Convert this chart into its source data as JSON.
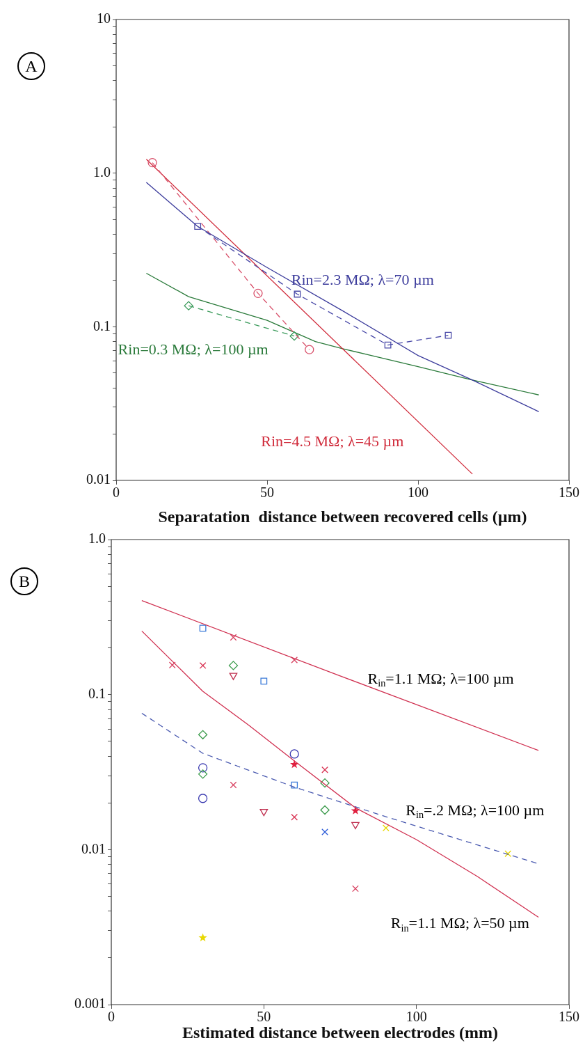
{
  "chart_data": [
    {
      "type": "line",
      "xlabel": "Separatation  distance between recovered cells (µm)",
      "annotations": [
        "A"
      ],
      "log": "y",
      "grid": false,
      "xlim": [
        0,
        150
      ],
      "xticks": [
        0,
        50,
        100,
        150
      ],
      "ylim": [
        0.01,
        10
      ],
      "yticks": [
        {
          "value": 0.01,
          "label": "0.01"
        },
        {
          "value": 0.02,
          "label": null
        },
        {
          "value": 0.03,
          "label": null
        },
        {
          "value": 0.04,
          "label": null
        },
        {
          "value": 0.05,
          "label": null
        },
        {
          "value": 0.06,
          "label": null
        },
        {
          "value": 0.07,
          "label": null
        },
        {
          "value": 0.08,
          "label": null
        },
        {
          "value": 0.09,
          "label": null
        },
        {
          "value": 0.1,
          "label": "0.1"
        },
        {
          "value": 0.2,
          "label": null
        },
        {
          "value": 0.3,
          "label": null
        },
        {
          "value": 0.4,
          "label": null
        },
        {
          "value": 0.5,
          "label": null
        },
        {
          "value": 0.6,
          "label": null
        },
        {
          "value": 0.7,
          "label": null
        },
        {
          "value": 0.8,
          "label": null
        },
        {
          "value": 0.9,
          "label": null
        },
        {
          "value": 1,
          "label": "1.0"
        },
        {
          "value": 2,
          "label": null
        },
        {
          "value": 3,
          "label": null
        },
        {
          "value": 4,
          "label": null
        },
        {
          "value": 5,
          "label": null
        },
        {
          "value": 6,
          "label": null
        },
        {
          "value": 7,
          "label": null
        },
        {
          "value": 8,
          "label": null
        },
        {
          "value": 9,
          "label": null
        },
        {
          "value": 10,
          "label": "10"
        }
      ],
      "series": [
        {
          "color": "#4a4aa8",
          "marker": "square",
          "line_style": "dashed",
          "x": [
            27,
            60,
            90,
            110
          ],
          "values": [
            0.45,
            0.163,
            0.076,
            0.088
          ]
        },
        {
          "name": "Rin=2.3 MΩ; λ=70 µm",
          "color": "#3c3c9c",
          "marker": "none",
          "line_style": "solid",
          "x": [
            10,
            27,
            50,
            75,
            100,
            118,
            140
          ],
          "values": [
            0.87,
            0.45,
            0.243,
            0.127,
            0.065,
            0.045,
            0.028
          ]
        },
        {
          "color": "#d8506a",
          "marker": "circle",
          "line_style": "dashed",
          "x": [
            12,
            47,
            64
          ],
          "values": [
            1.17,
            0.165,
            0.071
          ]
        },
        {
          "name": "Rin=4.5 MΩ; λ=45 µm",
          "color": "#d02a3a",
          "marker": "none",
          "line_style": "solid",
          "x": [
            10,
            118
          ],
          "values": [
            1.23,
            0.011
          ]
        },
        {
          "color": "#3a9a5a",
          "marker": "diamond",
          "line_style": "dashed",
          "x": [
            24,
            59
          ],
          "values": [
            0.137,
            0.087
          ]
        },
        {
          "name": "Rin=0.3 MΩ; λ=100 µm",
          "color": "#2a7a3a",
          "marker": "none",
          "line_style": "solid",
          "x": [
            10,
            24,
            50,
            66,
            75,
            100,
            118,
            140
          ],
          "values": [
            0.223,
            0.157,
            0.11,
            0.08,
            0.072,
            0.055,
            0.045,
            0.036
          ]
        }
      ]
    },
    {
      "type": "scatter",
      "xlabel": "Estimated distance between electrodes (mm)",
      "annotations": [
        "B"
      ],
      "log": "y",
      "grid": false,
      "xlim": [
        0,
        150
      ],
      "xticks": [
        0,
        50,
        100,
        150
      ],
      "ylim": [
        0.001,
        1
      ],
      "yticks": [
        {
          "value": 0.001,
          "label": "0.001"
        },
        {
          "value": 0.002,
          "label": null
        },
        {
          "value": 0.003,
          "label": null
        },
        {
          "value": 0.004,
          "label": null
        },
        {
          "value": 0.005,
          "label": null
        },
        {
          "value": 0.006,
          "label": null
        },
        {
          "value": 0.007,
          "label": null
        },
        {
          "value": 0.008,
          "label": null
        },
        {
          "value": 0.009,
          "label": null
        },
        {
          "value": 0.01,
          "label": "0.01"
        },
        {
          "value": 0.02,
          "label": null
        },
        {
          "value": 0.03,
          "label": null
        },
        {
          "value": 0.04,
          "label": null
        },
        {
          "value": 0.05,
          "label": null
        },
        {
          "value": 0.06,
          "label": null
        },
        {
          "value": 0.07,
          "label": null
        },
        {
          "value": 0.08,
          "label": null
        },
        {
          "value": 0.09,
          "label": null
        },
        {
          "value": 0.1,
          "label": "0.1"
        },
        {
          "value": 0.2,
          "label": null
        },
        {
          "value": 0.3,
          "label": null
        },
        {
          "value": 0.4,
          "label": null
        },
        {
          "value": 0.5,
          "label": null
        },
        {
          "value": 0.6,
          "label": null
        },
        {
          "value": 0.7,
          "label": null
        },
        {
          "value": 0.8,
          "label": null
        },
        {
          "value": 0.9,
          "label": null
        },
        {
          "value": 1,
          "label": "1.0"
        }
      ],
      "series": [
        {
          "type": "line",
          "name": "R$_{in}$=1.1 MΩ; λ=100 µm",
          "color": "#d03050",
          "marker": "none",
          "line_style": "solid",
          "x": [
            10,
            75,
            140
          ],
          "values": [
            0.404,
            0.132,
            0.0436
          ]
        },
        {
          "type": "line",
          "name": "R$_{in}$=.2 MΩ; λ=100 µm",
          "color": "#4a5ab0",
          "marker": "none",
          "line_style": "dashed",
          "x": [
            10,
            30,
            60,
            90,
            140
          ],
          "values": [
            0.0758,
            0.0418,
            0.0253,
            0.0163,
            0.0081
          ]
        },
        {
          "type": "line",
          "name": "R$_{in}$=1.1 MΩ; λ=50 µm",
          "color": "#d03050",
          "marker": "none",
          "line_style": "solid",
          "x": [
            10,
            30,
            45,
            60,
            80,
            100,
            120,
            140
          ],
          "values": [
            0.257,
            0.105,
            0.0636,
            0.0373,
            0.0186,
            0.0116,
            0.0067,
            0.00366
          ]
        },
        {
          "color": "#3a7ad8",
          "marker": "square",
          "x": [
            30,
            50,
            60
          ],
          "values": [
            0.268,
            0.122,
            0.0261
          ]
        },
        {
          "color": "#d84060",
          "marker": "cross",
          "x": [
            20,
            40,
            60,
            40,
            80
          ],
          "values": [
            0.155,
            0.234,
            0.167,
            0.0261,
            0.0056
          ]
        },
        {
          "color": "#d83050",
          "marker": "cross",
          "x": [
            30,
            70,
            60
          ],
          "values": [
            0.154,
            0.0327,
            0.0162
          ]
        },
        {
          "color": "#3a9a4a",
          "marker": "diamond",
          "x": [
            40,
            30,
            30,
            70,
            70
          ],
          "values": [
            0.154,
            0.0551,
            0.0307,
            0.0269,
            0.018
          ]
        },
        {
          "color": "#c03050",
          "marker": "triangle",
          "x": [
            40,
            50,
            80
          ],
          "values": [
            0.133,
            0.0176,
            0.0145
          ]
        },
        {
          "color": "#3a3ab0",
          "marker": "circle",
          "x": [
            60,
            30,
            30
          ],
          "values": [
            0.0414,
            0.0337,
            0.0214
          ]
        },
        {
          "color": "#e02040",
          "marker": "star",
          "x": [
            60,
            80
          ],
          "values": [
            0.0354,
            0.0178
          ]
        },
        {
          "color": "#2a5ad8",
          "marker": "cross",
          "x": [
            70
          ],
          "values": [
            0.013
          ]
        },
        {
          "color": "#e8d800",
          "marker": "cross",
          "x": [
            90,
            130
          ],
          "values": [
            0.0138,
            0.0094
          ]
        },
        {
          "color": "#e8d800",
          "marker": "star",
          "x": [
            30
          ],
          "values": [
            0.0027
          ]
        }
      ]
    }
  ]
}
